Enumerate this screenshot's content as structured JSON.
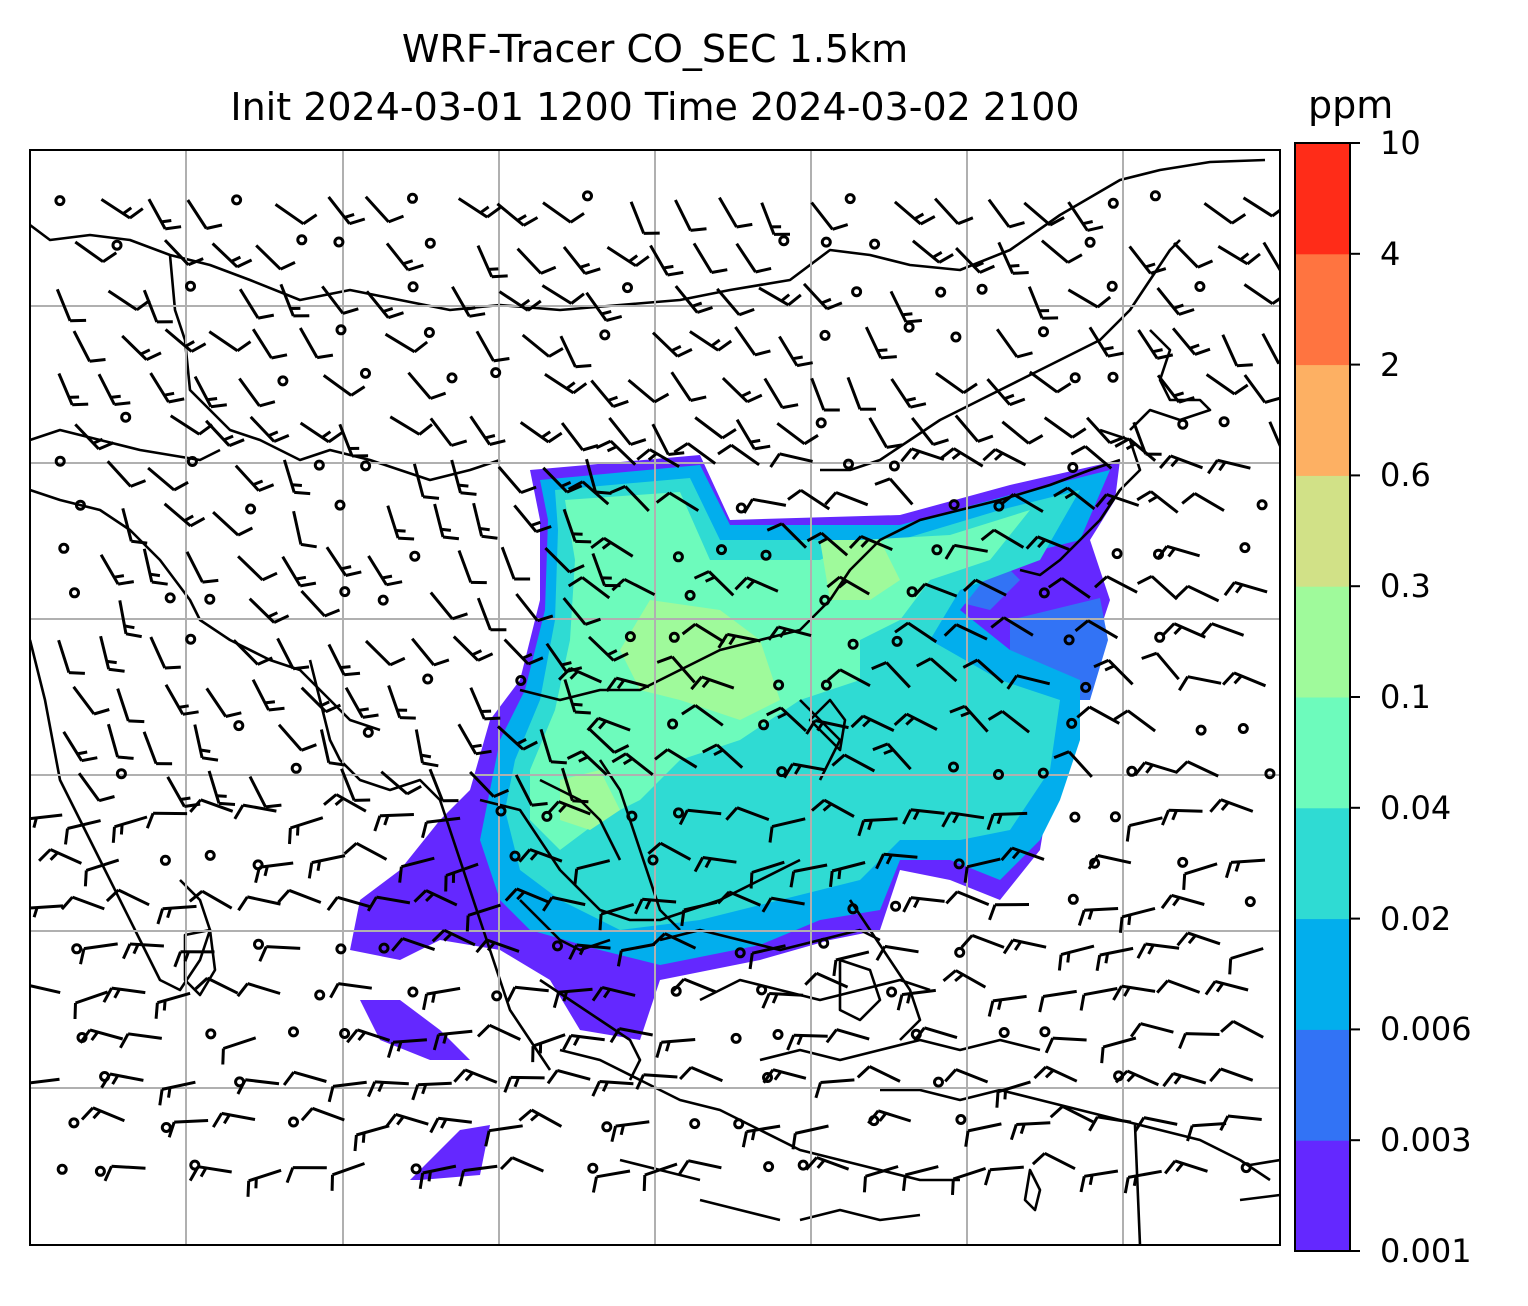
{
  "title": {
    "line1": "WRF-Tracer CO_SEC 1.5km",
    "line2": "Init 2024-03-01 1200 Time 2024-03-02 2100"
  },
  "colorbar": {
    "unit": "ppm",
    "ticks": [
      "0.001",
      "0.003",
      "0.006",
      "0.02",
      "0.04",
      "0.1",
      "0.3",
      "0.6",
      "2",
      "4",
      "10"
    ],
    "colors": [
      "#6428ff",
      "#3273f5",
      "#02aeed",
      "#2fdbd3",
      "#6dfbbc",
      "#9ffa9b",
      "#d1e187",
      "#fdb063",
      "#ff7440",
      "#ff2c18"
    ]
  },
  "map": {
    "frame_color": "#000000",
    "grid_color": "#b0b0b0",
    "coast_color": "#000000",
    "barb_color": "#000000"
  },
  "chart_data": {
    "type": "heatmap",
    "title": "WRF-Tracer CO_SEC 1.5km\nInit 2024-03-01 1200 Time 2024-03-02 2100",
    "colorbar_label": "ppm",
    "levels": [
      0.001,
      0.003,
      0.006,
      0.02,
      0.04,
      0.1,
      0.3,
      0.6,
      2,
      4,
      10
    ],
    "overlay": "wind barbs",
    "grid": true
  }
}
